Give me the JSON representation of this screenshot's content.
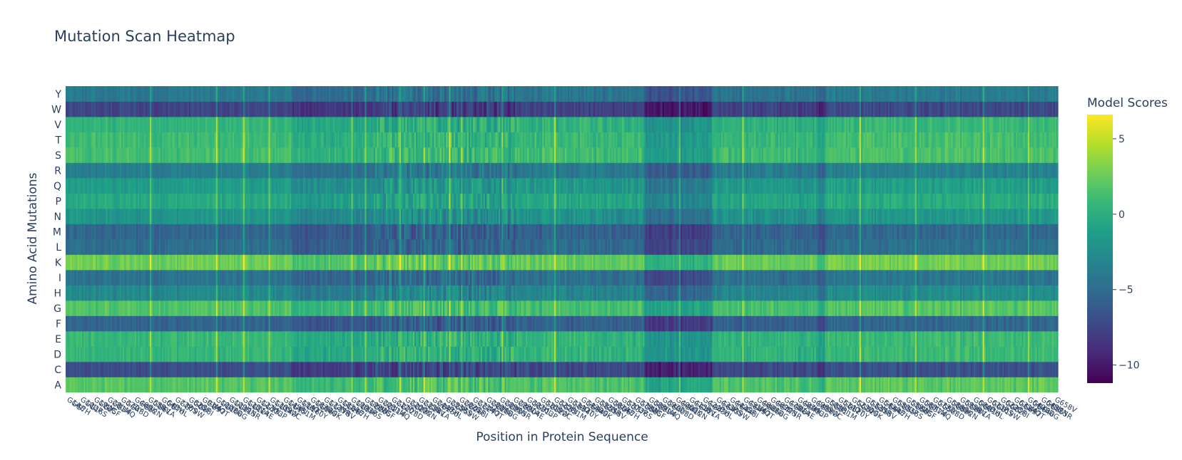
{
  "chart_data": {
    "type": "heatmap",
    "title": "Mutation Scan Heatmap",
    "xlabel": "Position in Protein Sequence",
    "ylabel": "Amino Acid Mutations",
    "y_categories": [
      "A",
      "C",
      "D",
      "E",
      "F",
      "G",
      "H",
      "I",
      "K",
      "L",
      "M",
      "N",
      "P",
      "Q",
      "R",
      "S",
      "T",
      "V",
      "W",
      "Y"
    ],
    "colorbar": {
      "title": "Model Scores",
      "colorscale": "Viridis",
      "zmin": -11.2,
      "zmax": 6.6,
      "ticks": [
        5,
        0,
        -5,
        -10
      ],
      "tick_labels": [
        "5",
        "0",
        "−5",
        "−10"
      ]
    },
    "n_positions": 660,
    "row_baseline_scores": {
      "A": 1.8,
      "C": -7.0,
      "D": 0.5,
      "E": 0.6,
      "F": -5.5,
      "G": 1.6,
      "H": -2.8,
      "I": -4.5,
      "K": 2.6,
      "L": -4.8,
      "M": -5.4,
      "N": -2.0,
      "P": -0.5,
      "Q": -1.5,
      "R": -3.6,
      "S": 1.2,
      "T": 0.9,
      "V": 0.4,
      "W": -7.5,
      "Y": -4.0
    },
    "region_adjustments": [
      {
        "from": 0,
        "to": 150,
        "shift": 0.0,
        "variability": 1.2
      },
      {
        "from": 150,
        "to": 205,
        "shift": -1.0,
        "variability": 1.5
      },
      {
        "from": 205,
        "to": 300,
        "shift": -0.5,
        "variability": 3.5
      },
      {
        "from": 300,
        "to": 385,
        "shift": -0.2,
        "variability": 1.8
      },
      {
        "from": 385,
        "to": 430,
        "shift": -2.5,
        "variability": 1.5
      },
      {
        "from": 430,
        "to": 500,
        "shift": -0.3,
        "variability": 1.6
      },
      {
        "from": 500,
        "to": 505,
        "shift": -1.5,
        "variability": 1.2
      },
      {
        "from": 505,
        "to": 660,
        "shift": 0.2,
        "variability": 1.5
      }
    ],
    "bright_columns": [
      56,
      100,
      118,
      135,
      190,
      199,
      222,
      238,
      255,
      263,
      290,
      325,
      408,
      450,
      528,
      565,
      610,
      640
    ],
    "x_tick_labels_note": "dense overlapping mutation labels (e.g. G1A, G1C, ...) per position"
  }
}
